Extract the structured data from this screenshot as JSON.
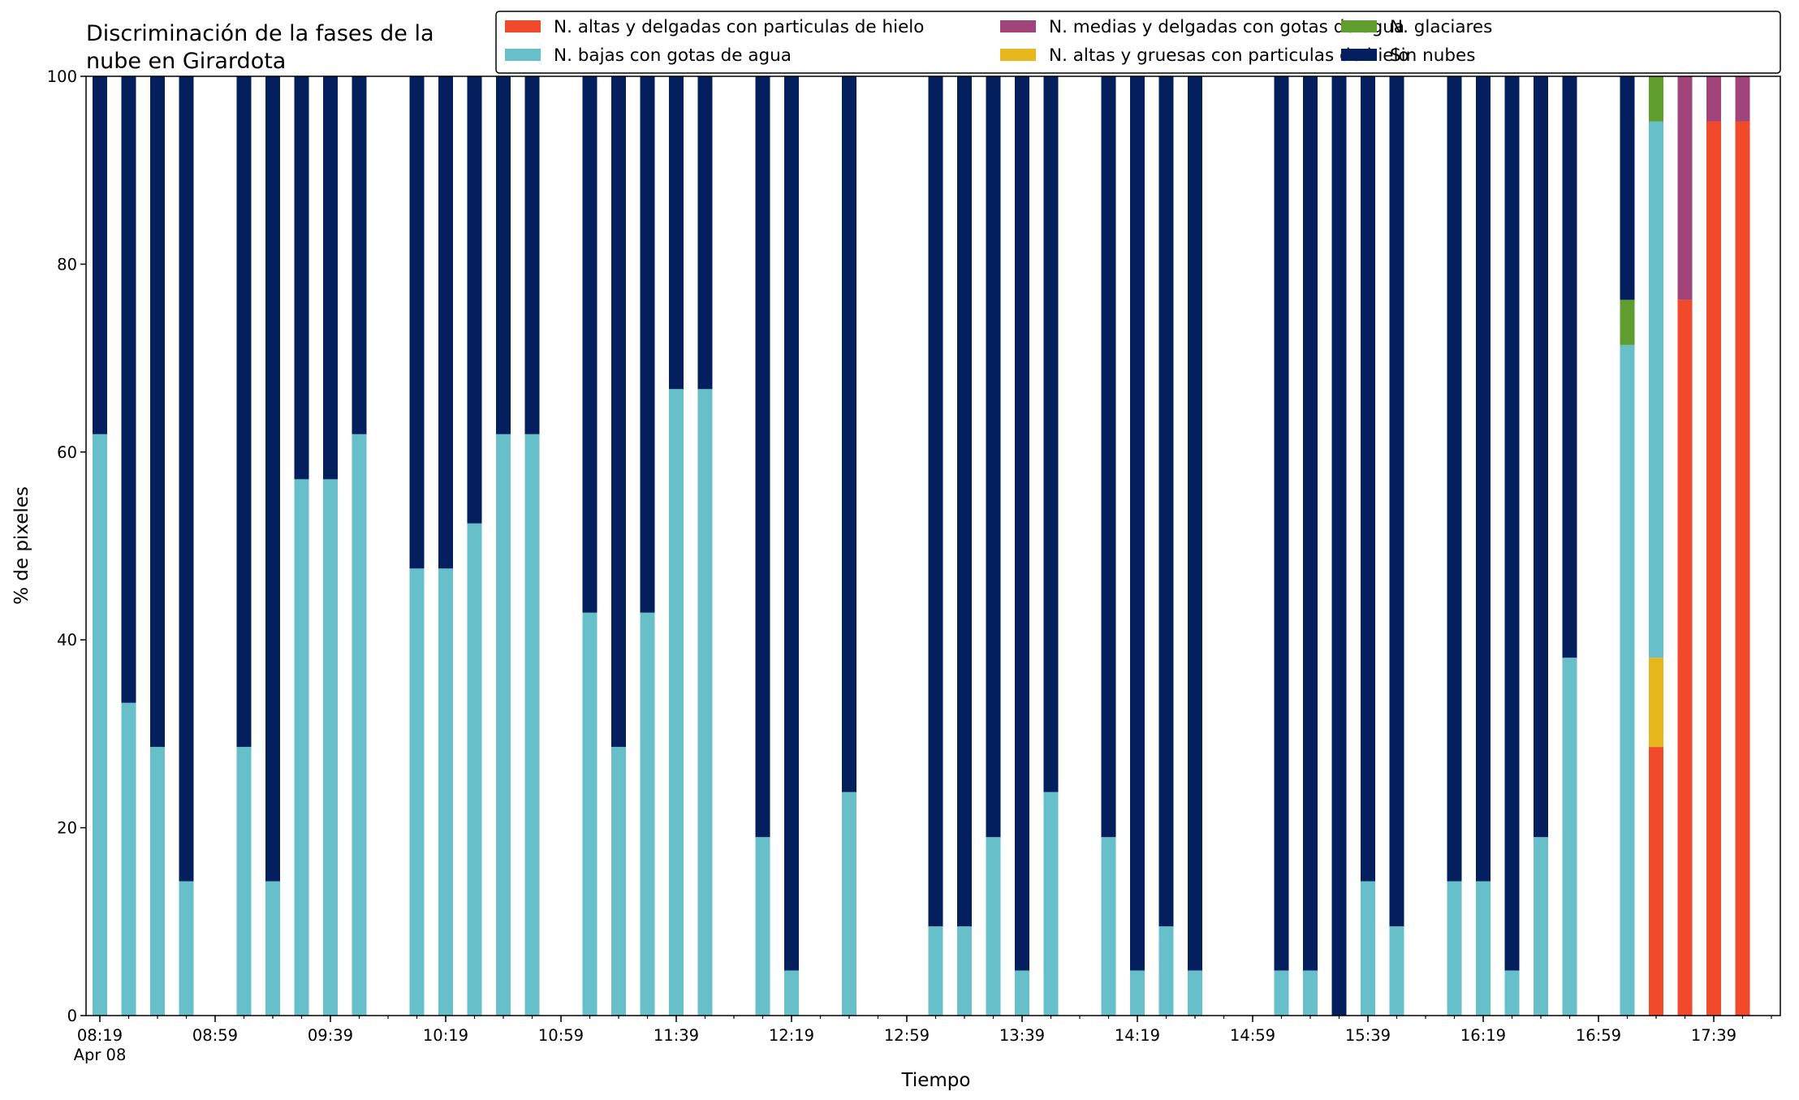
{
  "chart_data": {
    "type": "bar",
    "stacked": true,
    "title_lines": [
      "Discriminación de la fases de la",
      "nube en Girardota"
    ],
    "xlabel": "Tiempo",
    "ylabel": "% de pixeles",
    "ylim": [
      0,
      100
    ],
    "yticks": [
      0,
      20,
      40,
      60,
      80,
      100
    ],
    "legend_position": "top-right",
    "legend_columns": 3,
    "date_label": "Apr 08",
    "x_ticks": [
      "08:19",
      "08:59",
      "09:39",
      "10:19",
      "10:59",
      "11:39",
      "12:19",
      "12:59",
      "13:39",
      "14:19",
      "14:59",
      "15:39",
      "16:19",
      "16:59",
      "17:39"
    ],
    "times": [
      "08:19",
      "08:29",
      "08:39",
      "08:49",
      "08:59",
      "09:09",
      "09:19",
      "09:29",
      "09:39",
      "09:49",
      "09:59",
      "10:09",
      "10:19",
      "10:29",
      "10:39",
      "10:49",
      "10:59",
      "11:09",
      "11:19",
      "11:29",
      "11:39",
      "11:49",
      "11:59",
      "12:09",
      "12:19",
      "12:29",
      "12:39",
      "12:49",
      "12:59",
      "13:09",
      "13:19",
      "13:29",
      "13:39",
      "13:49",
      "13:59",
      "14:09",
      "14:19",
      "14:29",
      "14:39",
      "14:49",
      "14:59",
      "15:09",
      "15:19",
      "15:29",
      "15:39",
      "15:49",
      "15:59",
      "16:09",
      "16:19",
      "16:29",
      "16:39",
      "16:49",
      "16:59",
      "17:09",
      "17:19",
      "17:29",
      "17:39",
      "17:49"
    ],
    "series": [
      {
        "name": "N. altas y delgadas con particulas de hielo",
        "color": "#f04a2b",
        "values": [
          0,
          0,
          0,
          0,
          0,
          0,
          0,
          0,
          0,
          0,
          0,
          0,
          0,
          0,
          0,
          0,
          0,
          0,
          0,
          0,
          0,
          0,
          0,
          0,
          0,
          0,
          0,
          0,
          0,
          0,
          0,
          0,
          0,
          0,
          0,
          0,
          0,
          0,
          0,
          0,
          0,
          0,
          0,
          0,
          0,
          0,
          0,
          0,
          0,
          0,
          0,
          0,
          0,
          0,
          28.6,
          76.2,
          95.2,
          95.2
        ]
      },
      {
        "name": "N. altas y gruesas con particulas de hielo",
        "color": "#e6b81e",
        "values": [
          0,
          0,
          0,
          0,
          0,
          0,
          0,
          0,
          0,
          0,
          0,
          0,
          0,
          0,
          0,
          0,
          0,
          0,
          0,
          0,
          0,
          0,
          0,
          0,
          0,
          0,
          0,
          0,
          0,
          0,
          0,
          0,
          0,
          0,
          0,
          0,
          0,
          0,
          0,
          0,
          0,
          0,
          0,
          0,
          0,
          0,
          0,
          0,
          0,
          0,
          0,
          0,
          0,
          0,
          9.5,
          0,
          0,
          0
        ]
      },
      {
        "name": "N. bajas con gotas de agua",
        "color": "#66bfc9",
        "values": [
          61.9,
          33.3,
          28.6,
          14.3,
          0,
          28.6,
          14.3,
          57.1,
          57.1,
          61.9,
          0,
          47.6,
          47.6,
          52.4,
          61.9,
          61.9,
          0,
          42.9,
          28.6,
          42.9,
          66.7,
          66.7,
          0,
          19.0,
          4.8,
          0,
          23.8,
          0,
          0,
          9.5,
          9.5,
          19.0,
          4.8,
          23.8,
          0,
          19.0,
          4.8,
          9.5,
          4.8,
          0,
          0,
          4.8,
          4.8,
          0,
          14.3,
          9.5,
          0,
          14.3,
          14.3,
          4.8,
          19.0,
          38.1,
          0,
          71.4,
          57.1,
          0,
          0,
          0
        ]
      },
      {
        "name": "N. glaciares",
        "color": "#5f9e2e",
        "values": [
          0,
          0,
          0,
          0,
          0,
          0,
          0,
          0,
          0,
          0,
          0,
          0,
          0,
          0,
          0,
          0,
          0,
          0,
          0,
          0,
          0,
          0,
          0,
          0,
          0,
          0,
          0,
          0,
          0,
          0,
          0,
          0,
          0,
          0,
          0,
          0,
          0,
          0,
          0,
          0,
          0,
          0,
          0,
          0,
          0,
          0,
          0,
          0,
          0,
          0,
          0,
          0,
          0,
          4.8,
          4.8,
          0,
          0,
          0
        ]
      },
      {
        "name": "N. medias y delgadas con gotas de agua",
        "color": "#a04479",
        "values": [
          0,
          0,
          0,
          0,
          0,
          0,
          0,
          0,
          0,
          0,
          0,
          0,
          0,
          0,
          0,
          0,
          0,
          0,
          0,
          0,
          0,
          0,
          0,
          0,
          0,
          0,
          0,
          0,
          0,
          0,
          0,
          0,
          0,
          0,
          0,
          0,
          0,
          0,
          0,
          0,
          0,
          0,
          0,
          0,
          0,
          0,
          0,
          0,
          0,
          0,
          0,
          0,
          0,
          0,
          0,
          23.8,
          4.8,
          4.8
        ]
      },
      {
        "name": "Sin nubes",
        "color": "#031f5e",
        "values": [
          38.1,
          66.7,
          71.4,
          85.7,
          0,
          71.4,
          85.7,
          42.9,
          42.9,
          38.1,
          0,
          52.4,
          52.4,
          47.6,
          38.1,
          38.1,
          0,
          57.1,
          71.4,
          57.1,
          33.3,
          33.3,
          0,
          81.0,
          95.2,
          0,
          76.2,
          0,
          0,
          90.5,
          90.5,
          81.0,
          95.2,
          76.2,
          0,
          81.0,
          95.2,
          90.5,
          95.2,
          0,
          0,
          95.2,
          95.2,
          100,
          85.7,
          90.5,
          0,
          85.7,
          85.7,
          95.2,
          81.0,
          61.9,
          0,
          23.8,
          0,
          0,
          0,
          0
        ]
      }
    ],
    "legend_order": [
      0,
      2,
      4,
      1,
      3,
      5
    ]
  }
}
